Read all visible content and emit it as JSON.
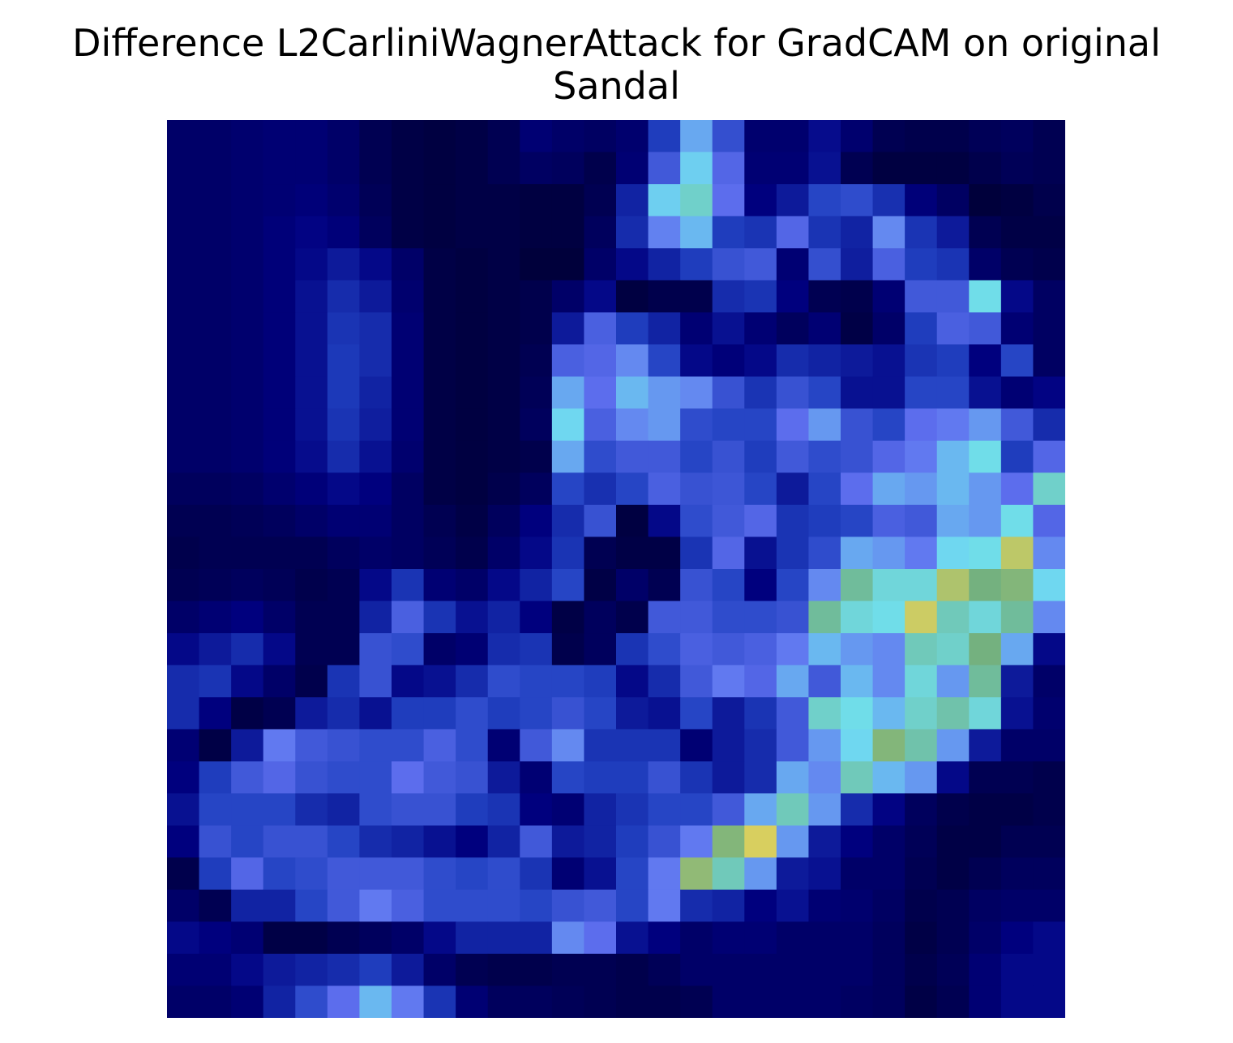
{
  "chart_data": {
    "type": "heatmap",
    "title_lines": [
      "Difference L2CarliniWagnerAttack for GradCAM on original",
      "Sandal"
    ],
    "rows": 28,
    "cols": 28,
    "colormap": [
      "#000030",
      "#000080",
      "#2040c0",
      "#6070f0",
      "#70e0f0",
      "#70b080",
      "#d8d060",
      "#e0a040"
    ],
    "values": [
      [
        0.1,
        0.1,
        0.11,
        0.12,
        0.12,
        0.1,
        0.06,
        0.04,
        0.03,
        0.04,
        0.06,
        0.12,
        0.1,
        0.09,
        0.11,
        0.28,
        0.5,
        0.33,
        0.11,
        0.11,
        0.17,
        0.11,
        0.06,
        0.05,
        0.05,
        0.07,
        0.08,
        0.06
      ],
      [
        0.1,
        0.1,
        0.11,
        0.12,
        0.12,
        0.1,
        0.06,
        0.04,
        0.03,
        0.04,
        0.06,
        0.09,
        0.08,
        0.05,
        0.12,
        0.36,
        0.55,
        0.4,
        0.12,
        0.12,
        0.18,
        0.06,
        0.03,
        0.03,
        0.03,
        0.05,
        0.07,
        0.06
      ],
      [
        0.1,
        0.1,
        0.11,
        0.12,
        0.13,
        0.11,
        0.07,
        0.04,
        0.03,
        0.04,
        0.04,
        0.03,
        0.03,
        0.06,
        0.22,
        0.55,
        0.62,
        0.42,
        0.14,
        0.2,
        0.3,
        0.32,
        0.25,
        0.13,
        0.09,
        0.02,
        0.03,
        0.05
      ],
      [
        0.1,
        0.1,
        0.11,
        0.13,
        0.15,
        0.13,
        0.08,
        0.04,
        0.03,
        0.04,
        0.04,
        0.03,
        0.03,
        0.08,
        0.24,
        0.45,
        0.52,
        0.28,
        0.26,
        0.4,
        0.26,
        0.22,
        0.46,
        0.26,
        0.2,
        0.06,
        0.04,
        0.04
      ],
      [
        0.1,
        0.1,
        0.11,
        0.13,
        0.16,
        0.2,
        0.16,
        0.1,
        0.04,
        0.03,
        0.04,
        0.02,
        0.02,
        0.1,
        0.16,
        0.22,
        0.28,
        0.34,
        0.36,
        0.12,
        0.33,
        0.21,
        0.38,
        0.28,
        0.26,
        0.1,
        0.06,
        0.05
      ],
      [
        0.1,
        0.1,
        0.11,
        0.13,
        0.18,
        0.24,
        0.2,
        0.11,
        0.04,
        0.03,
        0.04,
        0.05,
        0.1,
        0.16,
        0.03,
        0.05,
        0.05,
        0.24,
        0.26,
        0.14,
        0.06,
        0.05,
        0.12,
        0.36,
        0.36,
        0.58,
        0.16,
        0.09
      ],
      [
        0.1,
        0.1,
        0.11,
        0.13,
        0.18,
        0.26,
        0.24,
        0.12,
        0.04,
        0.03,
        0.04,
        0.05,
        0.2,
        0.38,
        0.28,
        0.22,
        0.12,
        0.18,
        0.12,
        0.08,
        0.12,
        0.04,
        0.1,
        0.28,
        0.38,
        0.36,
        0.12,
        0.09
      ],
      [
        0.1,
        0.1,
        0.11,
        0.13,
        0.18,
        0.27,
        0.24,
        0.12,
        0.04,
        0.03,
        0.04,
        0.06,
        0.38,
        0.4,
        0.46,
        0.3,
        0.16,
        0.13,
        0.16,
        0.24,
        0.22,
        0.2,
        0.18,
        0.26,
        0.28,
        0.14,
        0.3,
        0.09
      ],
      [
        0.1,
        0.1,
        0.11,
        0.13,
        0.18,
        0.27,
        0.22,
        0.12,
        0.04,
        0.03,
        0.04,
        0.07,
        0.5,
        0.42,
        0.52,
        0.48,
        0.46,
        0.34,
        0.26,
        0.34,
        0.3,
        0.18,
        0.18,
        0.3,
        0.3,
        0.18,
        0.12,
        0.15
      ],
      [
        0.1,
        0.1,
        0.11,
        0.13,
        0.18,
        0.26,
        0.21,
        0.12,
        0.04,
        0.03,
        0.04,
        0.08,
        0.56,
        0.38,
        0.46,
        0.48,
        0.32,
        0.3,
        0.3,
        0.42,
        0.48,
        0.34,
        0.3,
        0.42,
        0.44,
        0.48,
        0.36,
        0.24
      ],
      [
        0.1,
        0.1,
        0.11,
        0.13,
        0.17,
        0.24,
        0.18,
        0.11,
        0.04,
        0.03,
        0.04,
        0.05,
        0.5,
        0.32,
        0.36,
        0.36,
        0.3,
        0.34,
        0.28,
        0.36,
        0.32,
        0.34,
        0.4,
        0.44,
        0.52,
        0.58,
        0.28,
        0.4
      ],
      [
        0.08,
        0.08,
        0.09,
        0.11,
        0.13,
        0.16,
        0.14,
        0.09,
        0.04,
        0.03,
        0.05,
        0.08,
        0.3,
        0.25,
        0.3,
        0.38,
        0.34,
        0.35,
        0.3,
        0.2,
        0.3,
        0.42,
        0.5,
        0.48,
        0.52,
        0.48,
        0.42,
        0.62
      ],
      [
        0.06,
        0.06,
        0.07,
        0.08,
        0.1,
        0.12,
        0.12,
        0.09,
        0.06,
        0.04,
        0.08,
        0.14,
        0.24,
        0.34,
        0.03,
        0.16,
        0.32,
        0.36,
        0.4,
        0.26,
        0.28,
        0.3,
        0.38,
        0.36,
        0.5,
        0.48,
        0.58,
        0.4
      ],
      [
        0.05,
        0.06,
        0.06,
        0.06,
        0.06,
        0.08,
        0.1,
        0.09,
        0.07,
        0.05,
        0.1,
        0.16,
        0.26,
        0.06,
        0.04,
        0.04,
        0.26,
        0.4,
        0.18,
        0.26,
        0.32,
        0.5,
        0.48,
        0.44,
        0.56,
        0.58,
        0.82,
        0.46
      ],
      [
        0.06,
        0.07,
        0.08,
        0.07,
        0.05,
        0.06,
        0.16,
        0.26,
        0.12,
        0.1,
        0.16,
        0.22,
        0.3,
        0.04,
        0.1,
        0.06,
        0.34,
        0.3,
        0.14,
        0.3,
        0.46,
        0.68,
        0.6,
        0.6,
        0.8,
        0.72,
        0.74,
        0.56
      ],
      [
        0.1,
        0.12,
        0.14,
        0.1,
        0.06,
        0.06,
        0.22,
        0.38,
        0.26,
        0.18,
        0.22,
        0.14,
        0.04,
        0.08,
        0.05,
        0.36,
        0.36,
        0.32,
        0.32,
        0.34,
        0.68,
        0.6,
        0.58,
        0.84,
        0.64,
        0.6,
        0.68,
        0.46
      ],
      [
        0.16,
        0.2,
        0.24,
        0.16,
        0.06,
        0.06,
        0.34,
        0.32,
        0.1,
        0.12,
        0.24,
        0.26,
        0.05,
        0.08,
        0.26,
        0.32,
        0.38,
        0.36,
        0.38,
        0.44,
        0.52,
        0.48,
        0.46,
        0.64,
        0.62,
        0.72,
        0.5,
        0.16
      ],
      [
        0.24,
        0.26,
        0.16,
        0.1,
        0.05,
        0.26,
        0.34,
        0.16,
        0.18,
        0.24,
        0.32,
        0.3,
        0.3,
        0.28,
        0.16,
        0.24,
        0.36,
        0.44,
        0.4,
        0.5,
        0.36,
        0.52,
        0.46,
        0.6,
        0.48,
        0.68,
        0.2,
        0.1
      ],
      [
        0.24,
        0.14,
        0.04,
        0.06,
        0.2,
        0.24,
        0.18,
        0.28,
        0.28,
        0.32,
        0.28,
        0.3,
        0.34,
        0.3,
        0.2,
        0.18,
        0.3,
        0.2,
        0.26,
        0.36,
        0.62,
        0.58,
        0.52,
        0.62,
        0.66,
        0.6,
        0.18,
        0.11
      ],
      [
        0.12,
        0.04,
        0.2,
        0.44,
        0.36,
        0.34,
        0.32,
        0.32,
        0.38,
        0.32,
        0.12,
        0.36,
        0.46,
        0.26,
        0.26,
        0.26,
        0.12,
        0.2,
        0.24,
        0.36,
        0.48,
        0.56,
        0.74,
        0.66,
        0.48,
        0.2,
        0.1,
        0.1
      ],
      [
        0.14,
        0.28,
        0.36,
        0.4,
        0.34,
        0.32,
        0.32,
        0.42,
        0.36,
        0.34,
        0.2,
        0.12,
        0.3,
        0.28,
        0.28,
        0.34,
        0.26,
        0.2,
        0.24,
        0.5,
        0.46,
        0.64,
        0.52,
        0.48,
        0.16,
        0.06,
        0.06,
        0.05
      ],
      [
        0.18,
        0.3,
        0.3,
        0.3,
        0.24,
        0.22,
        0.32,
        0.34,
        0.34,
        0.28,
        0.26,
        0.14,
        0.12,
        0.22,
        0.26,
        0.3,
        0.3,
        0.36,
        0.5,
        0.64,
        0.48,
        0.24,
        0.15,
        0.08,
        0.05,
        0.04,
        0.04,
        0.05
      ],
      [
        0.14,
        0.34,
        0.3,
        0.34,
        0.34,
        0.3,
        0.24,
        0.22,
        0.18,
        0.14,
        0.22,
        0.36,
        0.2,
        0.22,
        0.28,
        0.34,
        0.44,
        0.74,
        0.86,
        0.48,
        0.2,
        0.14,
        0.1,
        0.07,
        0.04,
        0.04,
        0.06,
        0.06
      ],
      [
        0.05,
        0.28,
        0.4,
        0.3,
        0.32,
        0.36,
        0.36,
        0.36,
        0.32,
        0.3,
        0.32,
        0.26,
        0.12,
        0.18,
        0.3,
        0.44,
        0.76,
        0.64,
        0.48,
        0.2,
        0.18,
        0.1,
        0.1,
        0.06,
        0.04,
        0.06,
        0.08,
        0.08
      ],
      [
        0.1,
        0.06,
        0.22,
        0.22,
        0.3,
        0.36,
        0.44,
        0.38,
        0.32,
        0.32,
        0.32,
        0.3,
        0.34,
        0.36,
        0.3,
        0.44,
        0.24,
        0.22,
        0.14,
        0.18,
        0.12,
        0.11,
        0.09,
        0.05,
        0.06,
        0.09,
        0.1,
        0.1
      ],
      [
        0.16,
        0.14,
        0.12,
        0.04,
        0.04,
        0.06,
        0.08,
        0.1,
        0.16,
        0.22,
        0.22,
        0.22,
        0.46,
        0.42,
        0.18,
        0.14,
        0.1,
        0.12,
        0.12,
        0.1,
        0.1,
        0.1,
        0.08,
        0.04,
        0.06,
        0.1,
        0.14,
        0.16
      ],
      [
        0.12,
        0.12,
        0.16,
        0.2,
        0.22,
        0.24,
        0.28,
        0.2,
        0.1,
        0.06,
        0.05,
        0.05,
        0.06,
        0.06,
        0.05,
        0.07,
        0.1,
        0.1,
        0.1,
        0.1,
        0.1,
        0.1,
        0.08,
        0.05,
        0.07,
        0.12,
        0.16,
        0.16
      ],
      [
        0.1,
        0.1,
        0.12,
        0.22,
        0.32,
        0.42,
        0.52,
        0.44,
        0.26,
        0.12,
        0.08,
        0.08,
        0.07,
        0.06,
        0.05,
        0.05,
        0.06,
        0.1,
        0.1,
        0.1,
        0.1,
        0.09,
        0.08,
        0.04,
        0.06,
        0.12,
        0.16,
        0.16
      ]
    ]
  }
}
